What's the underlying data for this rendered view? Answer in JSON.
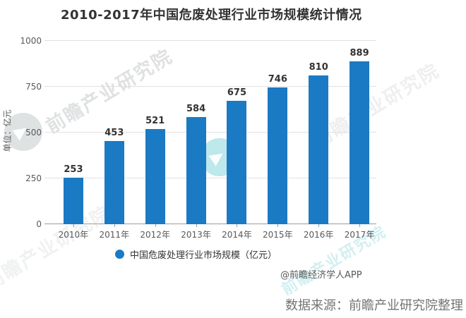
{
  "title": "2010-2017年中国危废处理行业市场规模统计情况",
  "chart_data": {
    "type": "bar",
    "categories": [
      "2010年",
      "2011年",
      "2012年",
      "2013年",
      "2014年",
      "2015年",
      "2016年",
      "2017年"
    ],
    "values": [
      253,
      453,
      521,
      584,
      675,
      746,
      810,
      889
    ],
    "title": "2010-2017年中国危废处理行业市场规模统计情况",
    "xlabel": "",
    "ylabel": "单位：亿元",
    "ylim": [
      0,
      1000
    ],
    "yticks": [
      0,
      250,
      500,
      750,
      1000
    ],
    "grid": true,
    "legend": [
      "中国危废处理行业市场规模（亿元）"
    ],
    "legend_position": "bottom",
    "bar_color": "#1b7ac4",
    "value_label_color": "#333333"
  },
  "legend": {
    "marker_color": "#1b7ac4",
    "label": "中国危废处理行业市场规模（亿元）"
  },
  "attribution": "@前瞻经济学人APP",
  "source": "数据来源：前瞻产业研究院整理",
  "watermark": {
    "text": "前瞻产业研究院"
  },
  "colors": {
    "bar": "#1b7ac4",
    "title_text": "#333333",
    "axis_text": "#595959",
    "grid_line": "#e0e0e0",
    "axis_line": "#9b9b9b",
    "source_text": "#737373",
    "background": "#ffffff"
  }
}
